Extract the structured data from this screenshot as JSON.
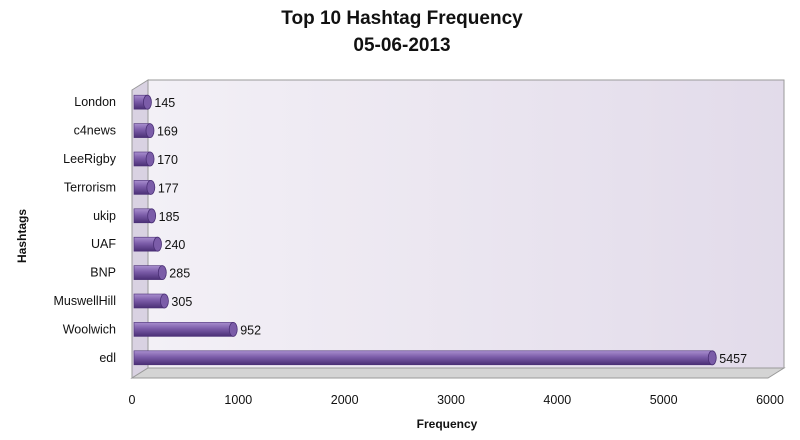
{
  "chart_data": {
    "type": "bar",
    "orientation": "horizontal",
    "title": "Top 10 Hashtag Frequency",
    "subtitle": "05-06-2013",
    "xlabel": "Frequency",
    "ylabel": "Hashtags",
    "categories": [
      "edl",
      "Woolwich",
      "MuswellHill",
      "BNP",
      "UAF",
      "ukip",
      "Terrorism",
      "LeeRigby",
      "c4news",
      "London"
    ],
    "values": [
      5457,
      952,
      305,
      285,
      240,
      185,
      177,
      170,
      169,
      145
    ],
    "xlim": [
      0,
      6000
    ],
    "xticks": [
      0,
      1000,
      2000,
      3000,
      4000,
      5000,
      6000
    ],
    "grid": false,
    "legend": "none",
    "bar_color": "#7b5ca8",
    "bar_dark_color": "#4a2f75",
    "bar_light_color": "#a98fcf",
    "wall_color": "#e6e0ec"
  }
}
